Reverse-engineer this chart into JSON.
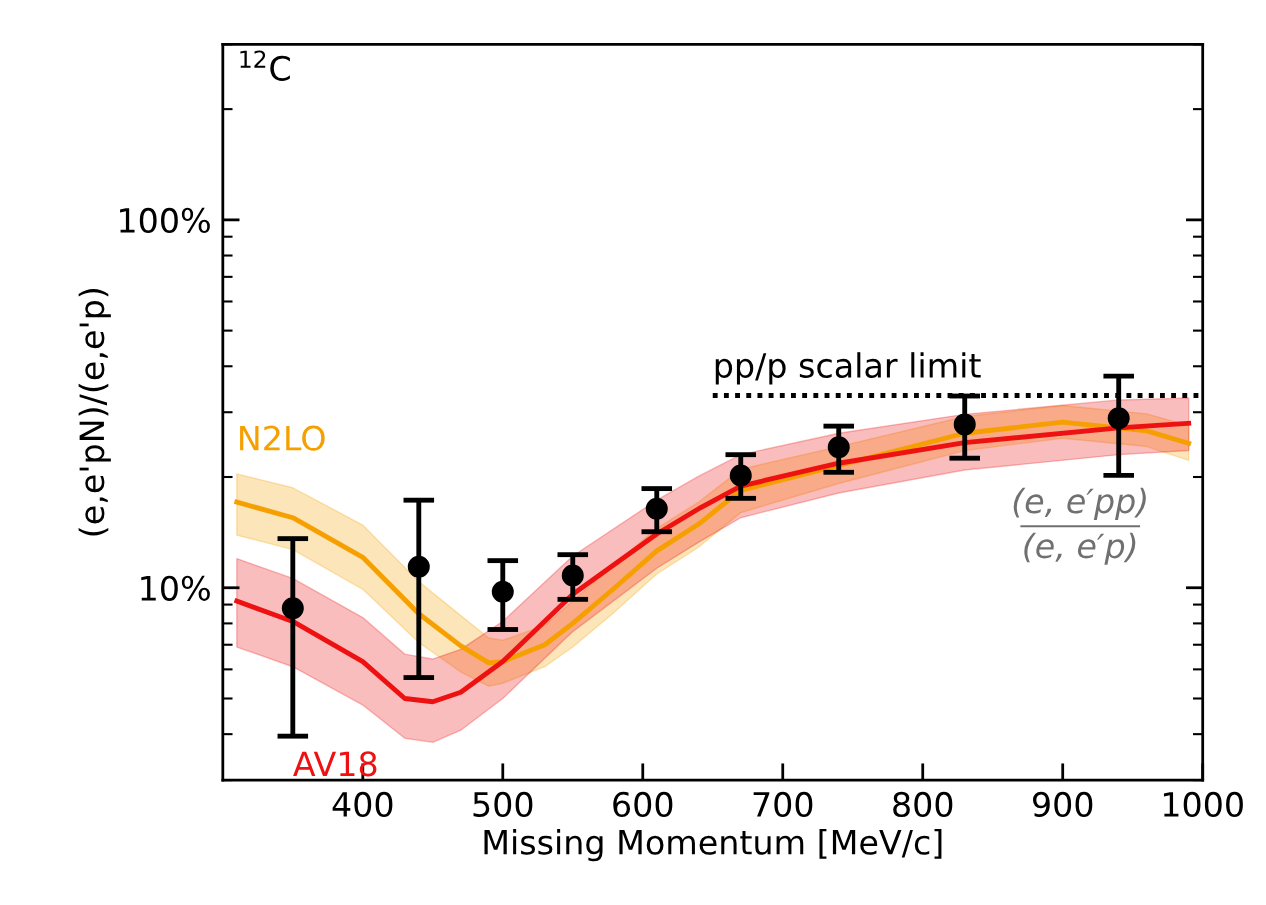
{
  "chart_data": {
    "type": "line",
    "xlabel": "Missing Momentum [MeV/c]",
    "ylabel": "(e,e'pN)/(e,e'p)",
    "log": "y",
    "xlim": [
      300,
      1000
    ],
    "xticks": [
      400,
      500,
      600,
      700,
      800,
      900,
      1000
    ],
    "ylim": [
      3,
      300
    ],
    "yticks": [
      {
        "value": 10,
        "label": "10%"
      },
      {
        "value": 100,
        "label": "100%"
      }
    ],
    "grid": false,
    "legend": false,
    "marker": "none",
    "line_style": "solid",
    "series": [
      {
        "name": "N2LO",
        "color": "#f5a000",
        "x": [
          310,
          350,
          400,
          440,
          470,
          490,
          500,
          530,
          550,
          580,
          610,
          640,
          670,
          740,
          830,
          900,
          960,
          990
        ],
        "values": [
          17.1,
          15.5,
          12.1,
          8.5,
          6.95,
          6.25,
          6.3,
          7.0,
          8.0,
          10,
          12.6,
          14.9,
          18.4,
          21.5,
          26.3,
          28.2,
          26.7,
          24.7
        ],
        "lower": [
          13.9,
          12.7,
          9.9,
          7.1,
          5.9,
          5.4,
          5.5,
          6.1,
          6.9,
          8.6,
          10.9,
          12.9,
          16.0,
          19.2,
          23.6,
          25.5,
          24.2,
          22.2
        ],
        "upper": [
          20.4,
          18.7,
          14.8,
          10.4,
          8.4,
          7.3,
          7.2,
          7.9,
          9.2,
          11.6,
          14.5,
          17.1,
          21.0,
          24.2,
          29.2,
          31.3,
          29.7,
          27.6
        ]
      },
      {
        "name": "AV18",
        "color": "#ee1111",
        "x": [
          310,
          350,
          400,
          430,
          450,
          470,
          500,
          550,
          610,
          640,
          670,
          740,
          830,
          940,
          990
        ],
        "values": [
          9.2,
          8.1,
          6.3,
          5.0,
          4.9,
          5.2,
          6.3,
          9.6,
          14.0,
          16.4,
          18.9,
          21.8,
          24.8,
          27.2,
          28.0
        ],
        "lower": [
          6.9,
          6.1,
          4.8,
          3.9,
          3.8,
          4.1,
          5.0,
          7.6,
          11.3,
          13.3,
          15.5,
          18.1,
          20.9,
          23.0,
          23.6
        ],
        "upper": [
          12.0,
          10.6,
          8.3,
          6.6,
          6.4,
          6.8,
          8.1,
          12.2,
          17.3,
          20.1,
          23.0,
          26.3,
          29.6,
          32.4,
          32.8
        ]
      },
      {
        "type": "line",
        "color": "#000000",
        "line_style": "dotted",
        "x": [
          650,
          1000
        ],
        "values": [
          33.3,
          33.3
        ]
      },
      {
        "type": "scatter",
        "color": "#000000",
        "marker": "circle",
        "x": [
          350,
          440,
          500,
          550,
          610,
          670,
          740,
          830,
          940
        ],
        "values": [
          8.8,
          11.4,
          9.75,
          10.8,
          16.4,
          20.2,
          24.1,
          27.8,
          28.9
        ],
        "errors": [
          [
            3.95,
            13.6
          ],
          [
            5.7,
            17.3
          ],
          [
            7.7,
            11.85
          ],
          [
            9.3,
            12.3
          ],
          [
            14.2,
            18.6
          ],
          [
            17.5,
            23.0
          ],
          [
            20.6,
            27.5
          ],
          [
            22.5,
            33.2
          ],
          [
            20.2,
            37.6
          ]
        ]
      }
    ],
    "annotations": [
      "$^{12}$C",
      {
        "text": "pp/p scalar limit",
        "x": 650,
        "y": 33.3
      },
      "(e, e′pp)\n(e, e′p)"
    ]
  }
}
